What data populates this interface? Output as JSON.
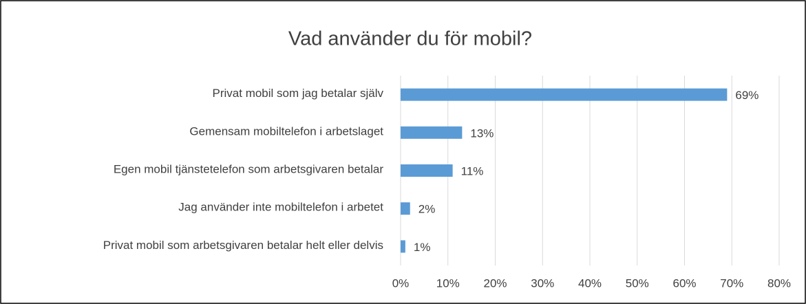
{
  "chart_data": {
    "type": "hbar",
    "title": "Vad använder du för mobil?",
    "categories": [
      "Privat mobil som jag betalar själv",
      "Gemensam mobiltelefon i arbetslaget",
      "Egen mobil tjänstetelefon som arbetsgivaren betalar",
      "Jag använder inte mobiltelefon i arbetet",
      "Privat mobil som arbetsgivaren betalar helt eller delvis"
    ],
    "values": [
      69,
      13,
      11,
      2,
      1
    ],
    "value_labels": [
      "69%",
      "13%",
      "11%",
      "2%",
      "1%"
    ],
    "color": "#5b9bd5",
    "xlim": [
      0,
      80
    ],
    "xticks": [
      {
        "value": 0,
        "label": "0%"
      },
      {
        "value": 10,
        "label": "10%"
      },
      {
        "value": 20,
        "label": "20%"
      },
      {
        "value": 30,
        "label": "30%"
      },
      {
        "value": 40,
        "label": "40%"
      },
      {
        "value": 50,
        "label": "50%"
      },
      {
        "value": 60,
        "label": "60%"
      },
      {
        "value": 70,
        "label": "70%"
      },
      {
        "value": 80,
        "label": "80%"
      }
    ],
    "grid": true
  }
}
